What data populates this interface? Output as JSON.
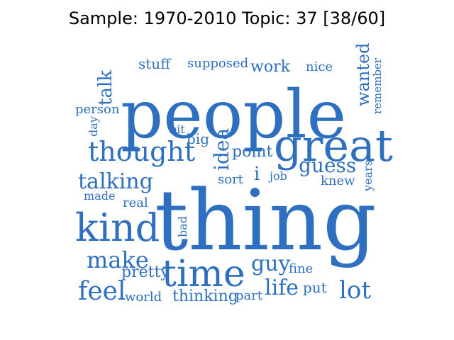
{
  "figure": {
    "title": "Sample: 1970-2010 Topic: 37 [38/60]"
  },
  "colors": {
    "word": "#2f6fbf",
    "background": "#ffffff",
    "title": "#000000"
  },
  "words": [
    "thing",
    "people",
    "great",
    "time",
    "kind",
    "thought",
    "make",
    "feel",
    "talking",
    "guy",
    "lot",
    "life",
    "guess",
    "idea",
    "wanted",
    "talk",
    "pretty",
    "work",
    "point",
    "thinking",
    "fine",
    "years",
    "remember",
    "person",
    "stuff",
    "supposed",
    "nice",
    "bit",
    "big",
    "day",
    "made",
    "real",
    "bad",
    "sort",
    "job",
    "knew",
    "world",
    "part",
    "put",
    "i"
  ]
}
